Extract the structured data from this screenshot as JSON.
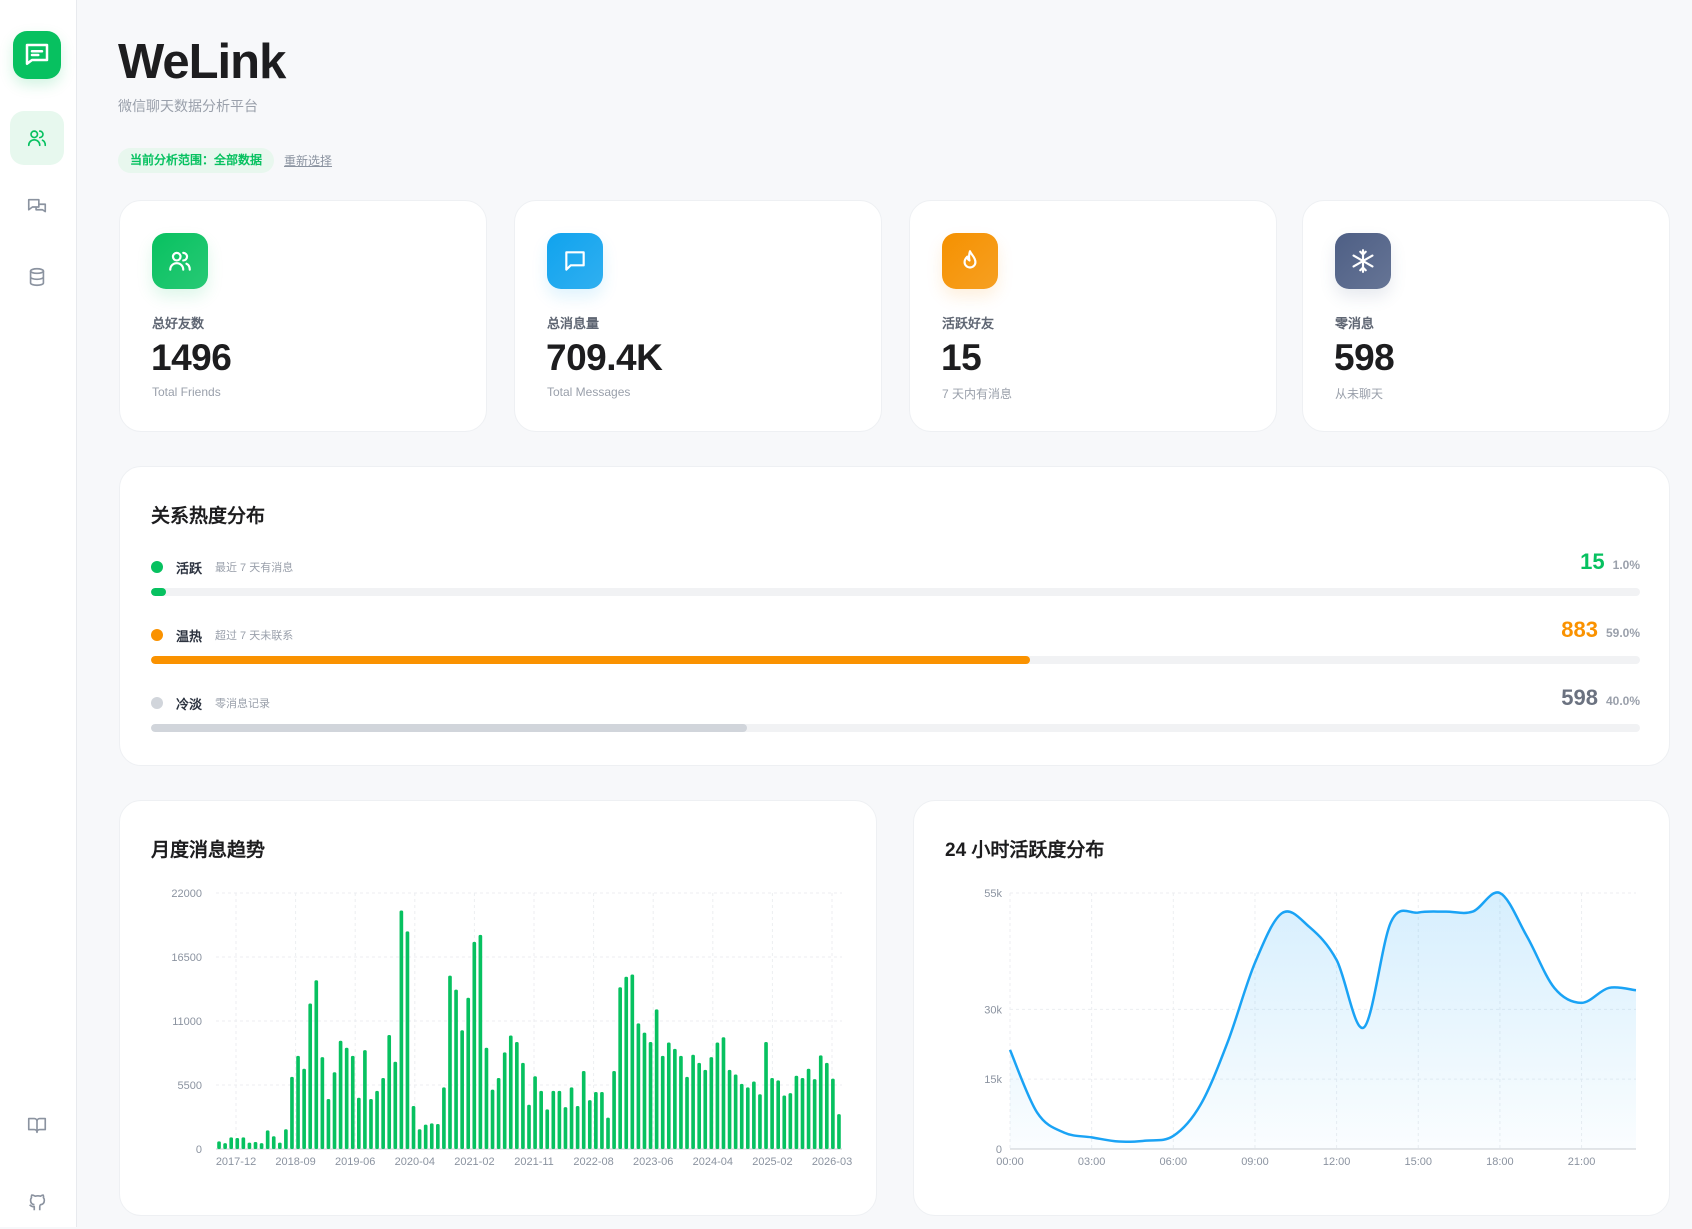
{
  "app": {
    "title": "WeLink",
    "subtitle": "微信聊天数据分析平台"
  },
  "scope": {
    "badge": "当前分析范围：全部数据",
    "reselect": "重新选择"
  },
  "sidebar": {
    "items": [
      {
        "icon": "users-icon",
        "active": true
      },
      {
        "icon": "chats-icon"
      },
      {
        "icon": "database-icon"
      }
    ],
    "bottom": [
      {
        "icon": "book-icon"
      },
      {
        "icon": "github-icon"
      }
    ]
  },
  "stats": [
    {
      "label": "总好友数",
      "value": "1496",
      "sub": "Total Friends",
      "color": "#07c160",
      "icon": "users-icon"
    },
    {
      "label": "总消息量",
      "value": "709.4K",
      "sub": "Total Messages",
      "color": "#10a3ee",
      "icon": "message-icon"
    },
    {
      "label": "活跃好友",
      "value": "15",
      "sub": "7 天内有消息",
      "color": "#f59100",
      "icon": "flame-icon"
    },
    {
      "label": "零消息",
      "value": "598",
      "sub": "从未聊天",
      "color": "#4e5f85",
      "icon": "snowflake-icon"
    }
  ],
  "heat": {
    "title": "关系热度分布",
    "rows": [
      {
        "name": "活跃",
        "desc": "最近 7 天有消息",
        "count": "15",
        "percent": "1.0%",
        "fraction": 0.01,
        "color": "#07c160"
      },
      {
        "name": "温热",
        "desc": "超过 7 天未联系",
        "count": "883",
        "percent": "59.0%",
        "fraction": 0.59,
        "color": "#fa9200"
      },
      {
        "name": "冷淡",
        "desc": "零消息记录",
        "count": "598",
        "percent": "40.0%",
        "fraction": 0.4,
        "color": "#d1d5db",
        "count_color": "#6b7280"
      }
    ]
  },
  "chart_data": [
    {
      "type": "bar",
      "title": "月度消息趋势",
      "color": "#07c160",
      "ylim": [
        0,
        22000
      ],
      "yticks": [
        "0",
        "5500",
        "11000",
        "16500",
        "22000"
      ],
      "xtick_labels": [
        "2017-12",
        "2018-09",
        "2019-06",
        "2020-04",
        "2021-02",
        "2021-11",
        "2022-08",
        "2023-06",
        "2024-04",
        "2025-02",
        "2026-03"
      ],
      "values": [
        660,
        500,
        1000,
        950,
        1000,
        550,
        600,
        500,
        1600,
        1100,
        550,
        1700,
        6200,
        8000,
        6900,
        12500,
        14500,
        7900,
        4300,
        6600,
        9300,
        8700,
        8000,
        4400,
        8500,
        4300,
        5000,
        6100,
        9800,
        7500,
        20500,
        18700,
        3700,
        1700,
        2100,
        2200,
        2150,
        5300,
        14900,
        13700,
        10200,
        13000,
        17800,
        18400,
        8700,
        5100,
        6100,
        8300,
        9750,
        9200,
        7400,
        3800,
        6250,
        5000,
        3400,
        5000,
        5000,
        3600,
        5300,
        3700,
        6700,
        4200,
        4900,
        4900,
        2700,
        6700,
        13900,
        14800,
        15000,
        10800,
        10000,
        9200,
        12000,
        8000,
        9150,
        8600,
        8000,
        6200,
        8100,
        7400,
        6800,
        7900,
        9150,
        9600,
        6800,
        6400,
        5600,
        5300,
        5800,
        4700,
        9200,
        6100,
        5900,
        4600,
        4800,
        6300,
        6100,
        6900,
        6000,
        8050,
        7400,
        6050,
        3000
      ]
    },
    {
      "type": "area",
      "title": "24 小时活跃度分布",
      "color": "#1aa3f5",
      "ylim": [
        0,
        55000
      ],
      "yticks": [
        {
          "v": 0,
          "label": "0"
        },
        {
          "v": 15000,
          "label": "15k"
        },
        {
          "v": 30000,
          "label": "30k"
        },
        {
          "v": 55000,
          "label": "55k"
        }
      ],
      "x": [
        0,
        1,
        2,
        3,
        4,
        5,
        6,
        7,
        8,
        9,
        10,
        11,
        12,
        13,
        14,
        15,
        16,
        17,
        18,
        19,
        20,
        21,
        22,
        23
      ],
      "xtick_labels": [
        "00:00",
        "03:00",
        "06:00",
        "09:00",
        "12:00",
        "15:00",
        "18:00",
        "21:00"
      ],
      "values": [
        21300,
        7800,
        3500,
        2500,
        1600,
        1800,
        2800,
        9500,
        23000,
        40000,
        50700,
        47700,
        40600,
        26100,
        48800,
        50800,
        51000,
        51000,
        55000,
        45600,
        34600,
        31400,
        34600,
        34100
      ]
    }
  ]
}
